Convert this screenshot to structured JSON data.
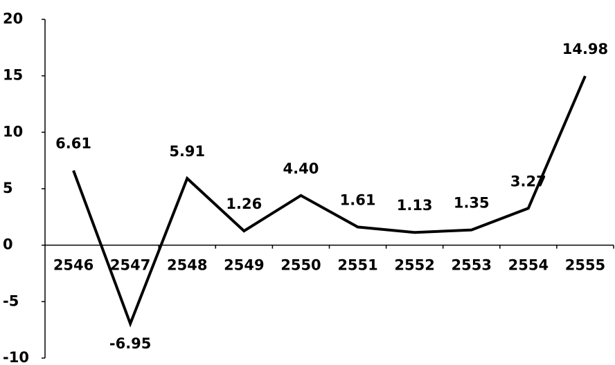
{
  "chart_data": {
    "type": "line",
    "categories": [
      "2546",
      "2547",
      "2548",
      "2549",
      "2550",
      "2551",
      "2552",
      "2553",
      "2554",
      "2555"
    ],
    "values": [
      6.61,
      -6.95,
      5.91,
      1.26,
      4.4,
      1.61,
      1.13,
      1.35,
      3.27,
      14.98
    ],
    "value_labels": [
      "6.61",
      "-6.95",
      "5.91",
      "1.26",
      "4.40",
      "1.61",
      "1.13",
      "1.35",
      "3.27",
      "14.98"
    ],
    "color": "#000000",
    "ylim": [
      -10,
      20
    ],
    "yticks": [
      20,
      15,
      10,
      5,
      0,
      -5,
      -10
    ],
    "grid": false
  }
}
